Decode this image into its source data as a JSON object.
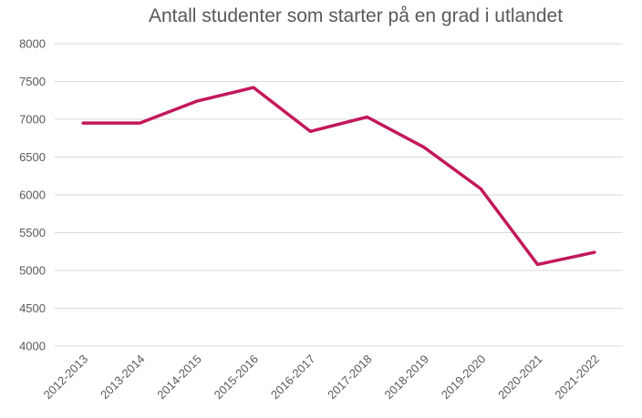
{
  "chart_data": {
    "type": "line",
    "title": "Antall studenter som starter på en grad i utlandet",
    "xlabel": "",
    "ylabel": "",
    "categories": [
      "2012-2013",
      "2013-2014",
      "2014-2015",
      "2015-2016",
      "2016-2017",
      "2017-2018",
      "2018-2019",
      "2019-2020",
      "2020-2021",
      "2021-2022"
    ],
    "series": [
      {
        "values": [
          6950,
          6950,
          7240,
          7420,
          6840,
          7030,
          6630,
          6080,
          5080,
          5240
        ],
        "color": "#c2185b"
      }
    ],
    "ylim": [
      4000,
      8000
    ],
    "yticks": [
      4000,
      4500,
      5000,
      5500,
      6000,
      6500,
      7000,
      7500,
      8000
    ],
    "grid": true,
    "legend": "none"
  }
}
